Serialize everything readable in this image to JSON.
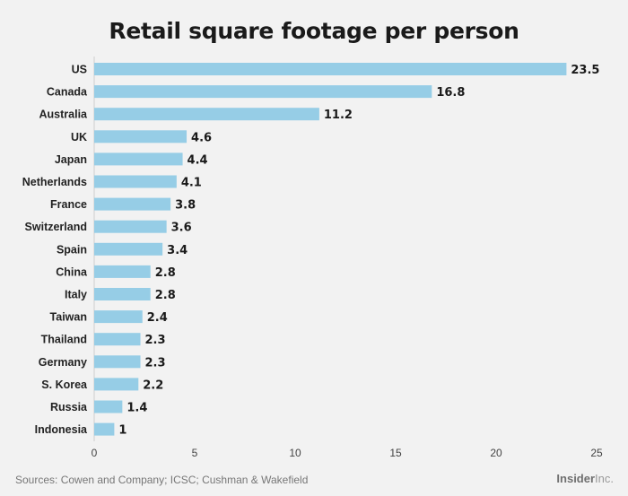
{
  "chart_data": {
    "type": "bar",
    "orientation": "horizontal",
    "title": "Retail square footage per person",
    "xlabel": "",
    "ylabel": "",
    "categories": [
      "US",
      "Canada",
      "Australia",
      "UK",
      "Japan",
      "Netherlands",
      "France",
      "Switzerland",
      "Spain",
      "China",
      "Italy",
      "Taiwan",
      "Thailand",
      "Germany",
      "S. Korea",
      "Russia",
      "Indonesia"
    ],
    "values": [
      23.5,
      16.8,
      11.2,
      4.6,
      4.4,
      4.1,
      3.8,
      3.6,
      3.4,
      2.8,
      2.8,
      2.4,
      2.3,
      2.3,
      2.2,
      1.4,
      1
    ],
    "value_labels": [
      "23.5",
      "16.8",
      "11.2",
      "4.6",
      "4.4",
      "4.1",
      "3.8",
      "3.6",
      "3.4",
      "2.8",
      "2.8",
      "2.4",
      "2.3",
      "2.3",
      "2.2",
      "1.4",
      "1"
    ],
    "xlim": [
      0,
      25
    ],
    "xticks": [
      0,
      5,
      10,
      15,
      20,
      25
    ],
    "grid": false,
    "legend": "none",
    "bar_color": "#96cde6"
  },
  "footer": {
    "source": "Sources: Cowen and Company; ICSC; Cushman & Wakefield",
    "brand_strong": "Insider",
    "brand_light": "Inc."
  }
}
